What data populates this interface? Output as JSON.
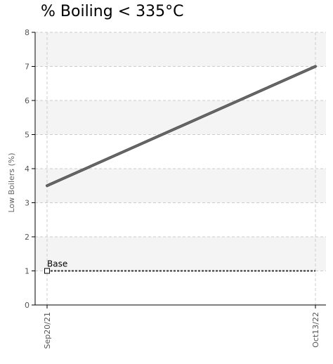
{
  "chart_data": {
    "type": "line",
    "title": "% Boiling < 335°C",
    "xlabel": "",
    "ylabel": "Low Boilers (%)",
    "x_tick_labels": [
      "Sep20/21",
      "Oct13/22"
    ],
    "ylim": [
      0,
      8
    ],
    "y_ticks": [
      0,
      1,
      2,
      3,
      4,
      5,
      6,
      7,
      8
    ],
    "grid": true,
    "alternating_bands": true,
    "colors": {
      "trend": "#5a5a5a",
      "base": "#333333",
      "band": "#f4f4f4",
      "grid": "#cccccc",
      "axis": "#000000"
    },
    "series": [
      {
        "x": [
          "Sep20/21",
          "Oct13/22"
        ],
        "values": [
          3.5,
          7.0
        ],
        "style": "solid"
      }
    ],
    "annotations": [
      {
        "label": "Base",
        "y": 1,
        "style": "dotted",
        "marker": "open-square"
      }
    ]
  }
}
